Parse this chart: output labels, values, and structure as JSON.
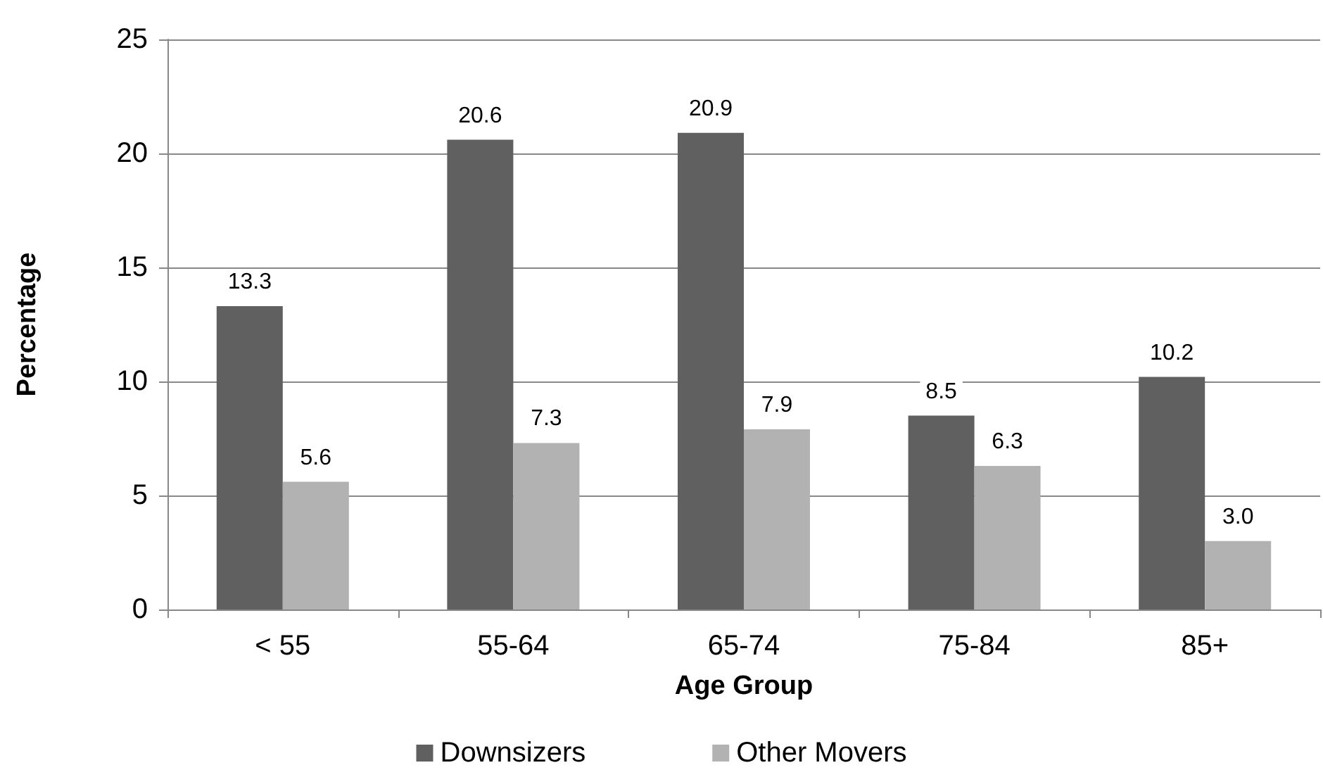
{
  "chart_data": {
    "type": "bar",
    "xlabel": "Age Group",
    "ylabel": "Percentage",
    "categories": [
      "< 55",
      "55-64",
      "65-74",
      "75-84",
      "85+"
    ],
    "series": [
      {
        "name": "Downsizers",
        "color": "#606060",
        "values": [
          13.3,
          20.6,
          20.9,
          8.5,
          10.2
        ],
        "value_labels": [
          "13.3",
          "20.6",
          "20.9",
          "8.5",
          "10.2"
        ]
      },
      {
        "name": "Other Movers",
        "color": "#b2b2b2",
        "values": [
          5.6,
          7.3,
          7.9,
          6.3,
          3.0
        ],
        "value_labels": [
          "5.6",
          "7.3",
          "7.9",
          "6.3",
          "3.0"
        ]
      }
    ],
    "ylim": [
      0,
      25
    ],
    "yticks": [
      0,
      5,
      10,
      15,
      20,
      25
    ],
    "grid": "y",
    "legend": "bottom"
  }
}
